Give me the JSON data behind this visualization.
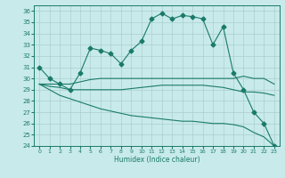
{
  "title": "",
  "xlabel": "Humidex (Indice chaleur)",
  "background_color": "#c8eaea",
  "grid_color": "#aacece",
  "line_color": "#1a7a6a",
  "xlim": [
    -0.5,
    23.5
  ],
  "ylim": [
    24,
    36.5
  ],
  "yticks": [
    24,
    25,
    26,
    27,
    28,
    29,
    30,
    31,
    32,
    33,
    34,
    35,
    36
  ],
  "xticks": [
    0,
    1,
    2,
    3,
    4,
    5,
    6,
    7,
    8,
    9,
    10,
    11,
    12,
    13,
    14,
    15,
    16,
    17,
    18,
    19,
    20,
    21,
    22,
    23
  ],
  "series": [
    {
      "x": [
        0,
        1,
        2,
        3,
        4,
        5,
        6,
        7,
        8,
        9,
        10,
        11,
        12,
        13,
        14,
        15,
        16,
        17,
        18,
        19,
        20,
        21,
        22,
        23
      ],
      "y": [
        31.0,
        30.0,
        29.5,
        29.0,
        30.5,
        32.7,
        32.5,
        32.2,
        31.3,
        32.5,
        33.3,
        35.3,
        35.8,
        35.3,
        35.6,
        35.5,
        35.3,
        33.0,
        34.6,
        30.5,
        29.0,
        27.0,
        26.0,
        24.0
      ],
      "marker": "D",
      "markersize": 2.5,
      "with_markers": true
    },
    {
      "x": [
        0,
        1,
        2,
        3,
        4,
        5,
        6,
        7,
        8,
        9,
        10,
        11,
        12,
        13,
        14,
        15,
        16,
        17,
        18,
        19,
        20,
        21,
        22,
        23
      ],
      "y": [
        29.5,
        29.5,
        29.5,
        29.5,
        29.7,
        29.9,
        30.0,
        30.0,
        30.0,
        30.0,
        30.0,
        30.0,
        30.0,
        30.0,
        30.0,
        30.0,
        30.0,
        30.0,
        30.0,
        30.0,
        30.2,
        30.0,
        30.0,
        29.5
      ],
      "marker": null,
      "markersize": 0,
      "with_markers": false
    },
    {
      "x": [
        0,
        1,
        2,
        3,
        4,
        5,
        6,
        7,
        8,
        9,
        10,
        11,
        12,
        13,
        14,
        15,
        16,
        17,
        18,
        19,
        20,
        21,
        22,
        23
      ],
      "y": [
        29.5,
        29.3,
        29.2,
        29.0,
        29.0,
        29.0,
        29.0,
        29.0,
        29.0,
        29.1,
        29.2,
        29.3,
        29.4,
        29.4,
        29.4,
        29.4,
        29.4,
        29.3,
        29.2,
        29.0,
        28.8,
        28.8,
        28.7,
        28.5
      ],
      "marker": null,
      "markersize": 0,
      "with_markers": false
    },
    {
      "x": [
        0,
        1,
        2,
        3,
        4,
        5,
        6,
        7,
        8,
        9,
        10,
        11,
        12,
        13,
        14,
        15,
        16,
        17,
        18,
        19,
        20,
        21,
        22,
        23
      ],
      "y": [
        29.5,
        29.0,
        28.5,
        28.2,
        27.9,
        27.6,
        27.3,
        27.1,
        26.9,
        26.7,
        26.6,
        26.5,
        26.4,
        26.3,
        26.2,
        26.2,
        26.1,
        26.0,
        26.0,
        25.9,
        25.7,
        25.2,
        24.8,
        24.0
      ],
      "marker": null,
      "markersize": 0,
      "with_markers": false
    }
  ]
}
